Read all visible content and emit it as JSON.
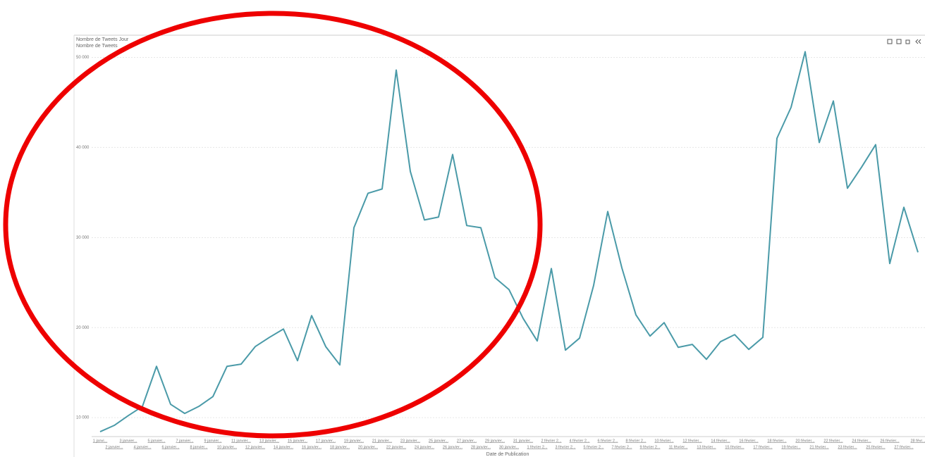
{
  "chart_data": {
    "type": "line",
    "title": "Nombre de Tweets Jour",
    "subtitle": "Nombre de Tweets",
    "x_label": "Date de Publication",
    "categories": [
      "1 janvi...",
      "2 janvier...",
      "3 janvier...",
      "4 janvier...",
      "5 janvier...",
      "6 janvier...",
      "7 janvier...",
      "8 janvier...",
      "9 janvier...",
      "10 janvier...",
      "11 janvier...",
      "12 janvier...",
      "13 janvier...",
      "14 janvier...",
      "15 janvier...",
      "16 janvier...",
      "17 janvier...",
      "18 janvier...",
      "19 janvier...",
      "20 janvier...",
      "21 janvier...",
      "22 janvier...",
      "23 janvier...",
      "24 janvier...",
      "25 janvier...",
      "26 janvier...",
      "27 janvier...",
      "28 janvier...",
      "29 janvier...",
      "30 janvier...",
      "31 janvier...",
      "1 février 2...",
      "2 février 2...",
      "3 février 2...",
      "4 février 2...",
      "5 février 2...",
      "6 février 2...",
      "7 février 2...",
      "8 février 2...",
      "9 février 2...",
      "10 février...",
      "11 février...",
      "12 février...",
      "13 février...",
      "14 février...",
      "15 février...",
      "16 février...",
      "17 février...",
      "18 février...",
      "19 février...",
      "20 février...",
      "21 février...",
      "22 février...",
      "23 février...",
      "24 février...",
      "25 février...",
      "26 février...",
      "27 février...",
      "28 févr..."
    ],
    "series": [
      {
        "name": "Nombre de Tweets",
        "color": "#4a9aa8",
        "values": [
          8440,
          9140,
          10230,
          11250,
          15700,
          11480,
          10470,
          11250,
          12340,
          15700,
          15940,
          17890,
          18910,
          19840,
          16330,
          21330,
          17890,
          15860,
          31090,
          34920,
          35390,
          48590,
          37340,
          31950,
          32270,
          39220,
          31330,
          31090,
          25550,
          24220,
          21020,
          18520,
          26560,
          17500,
          18830,
          24690,
          32890,
          26640,
          21410,
          19060,
          20550,
          17810,
          18130,
          16480,
          18440,
          19220,
          17580,
          18910,
          41020,
          44450,
          50630,
          40550,
          45160,
          35470,
          37810,
          40310,
          27110,
          33360,
          28360
        ]
      }
    ],
    "ylim": [
      7900,
      50900
    ],
    "yticks": [
      {
        "value": 10000,
        "label": "10 000"
      },
      {
        "value": 20000,
        "label": "20 000"
      },
      {
        "value": 30000,
        "label": "30 000"
      },
      {
        "value": 40000,
        "label": "40 000"
      },
      {
        "value": 50000,
        "label": "50 000"
      }
    ],
    "grid": true
  }
}
